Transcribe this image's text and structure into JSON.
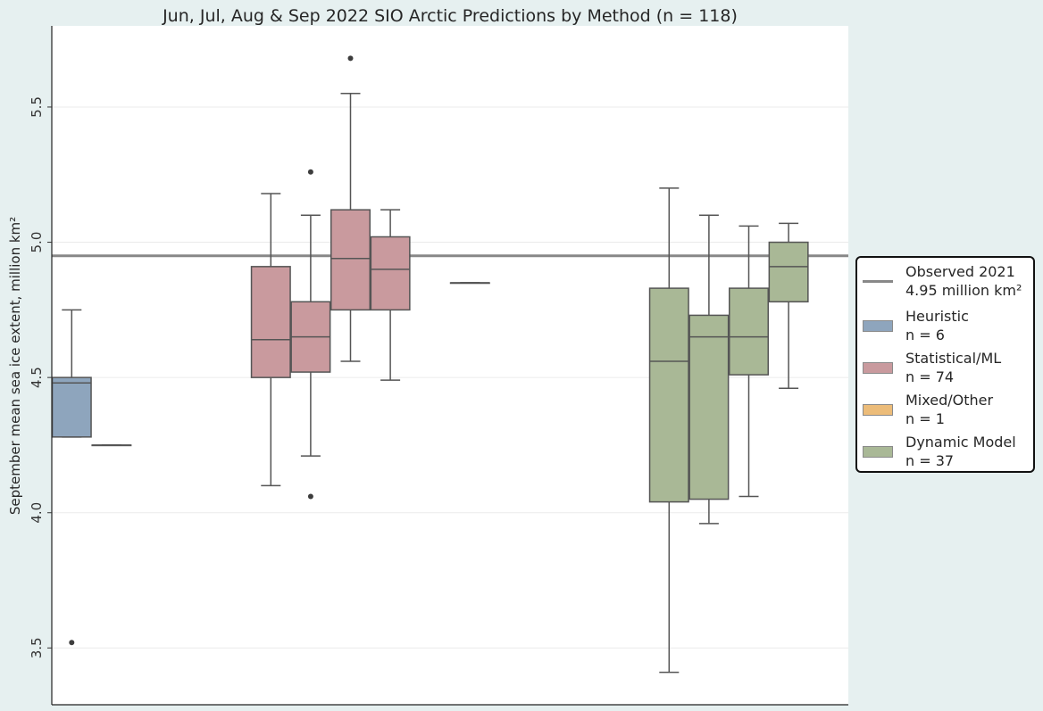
{
  "chart_data": {
    "type": "box",
    "title": "Jun, Jul, Aug & Sep 2022 SIO Arctic Predictions by Method (n = 118)",
    "ylabel": "September mean sea ice extent, million km²",
    "ylim": [
      3.29,
      5.8
    ],
    "yticks": [
      3.5,
      4.0,
      4.5,
      5.0,
      5.5
    ],
    "ytick_labels": [
      "3.5",
      "4.0",
      "4.5",
      "5.0",
      "5.5"
    ],
    "grid": true,
    "observed": {
      "label": "Observed 2021",
      "value": 4.95,
      "sublabel": "4.95 million",
      "unit": "km²",
      "color": "#888888"
    },
    "series": [
      {
        "name": "Heuristic",
        "n": 6,
        "color": "#8ea5bd"
      },
      {
        "name": "Statistical/ML",
        "n": 74,
        "color": "#c99a9e"
      },
      {
        "name": "Mixed/Other",
        "n": 1,
        "color": "#ecbc79"
      },
      {
        "name": "Dynamic Model",
        "n": 37,
        "color": "#a9b896"
      }
    ],
    "boxes": [
      {
        "series": 0,
        "slot": 0,
        "whislo": 4.28,
        "q1": 4.28,
        "med": 4.48,
        "q3": 4.5,
        "whishi": 4.75,
        "fliers": [
          3.52
        ]
      },
      {
        "series": 0,
        "slot": 1,
        "whislo": 4.25,
        "q1": 4.25,
        "med": 4.25,
        "q3": 4.25,
        "whishi": 4.25,
        "fliers": []
      },
      {
        "series": 1,
        "slot": 5,
        "whislo": 4.1,
        "q1": 4.5,
        "med": 4.64,
        "q3": 4.91,
        "whishi": 5.18,
        "fliers": []
      },
      {
        "series": 1,
        "slot": 6,
        "whislo": 4.21,
        "q1": 4.52,
        "med": 4.65,
        "q3": 4.78,
        "whishi": 5.1,
        "fliers": [
          4.06,
          5.26
        ]
      },
      {
        "series": 1,
        "slot": 7,
        "whislo": 4.56,
        "q1": 4.75,
        "med": 4.94,
        "q3": 5.12,
        "whishi": 5.55,
        "fliers": [
          5.68
        ]
      },
      {
        "series": 1,
        "slot": 8,
        "whislo": 4.49,
        "q1": 4.75,
        "med": 4.9,
        "q3": 5.02,
        "whishi": 5.12,
        "fliers": []
      },
      {
        "series": 2,
        "slot": 10,
        "whislo": 4.85,
        "q1": 4.85,
        "med": 4.85,
        "q3": 4.85,
        "whishi": 4.85,
        "fliers": []
      },
      {
        "series": 3,
        "slot": 15,
        "whislo": 3.41,
        "q1": 4.04,
        "med": 4.56,
        "q3": 4.83,
        "whishi": 5.2,
        "fliers": []
      },
      {
        "series": 3,
        "slot": 16,
        "whislo": 3.96,
        "q1": 4.05,
        "med": 4.65,
        "q3": 4.73,
        "whishi": 5.1,
        "fliers": []
      },
      {
        "series": 3,
        "slot": 17,
        "whislo": 4.06,
        "q1": 4.51,
        "med": 4.65,
        "q3": 4.83,
        "whishi": 5.06,
        "fliers": []
      },
      {
        "series": 3,
        "slot": 18,
        "whislo": 4.46,
        "q1": 4.78,
        "med": 4.91,
        "q3": 5.0,
        "whishi": 5.07,
        "fliers": []
      }
    ]
  },
  "legend": {
    "items": [
      {
        "label": "Observed 2021",
        "sub": "4.95 million km²"
      },
      {
        "label": "Heuristic",
        "sub": "n = 6"
      },
      {
        "label": "Statistical/ML",
        "sub": "n = 74"
      },
      {
        "label": "Mixed/Other",
        "sub": "n = 1"
      },
      {
        "label": "Dynamic Model",
        "sub": "n = 37"
      }
    ]
  }
}
